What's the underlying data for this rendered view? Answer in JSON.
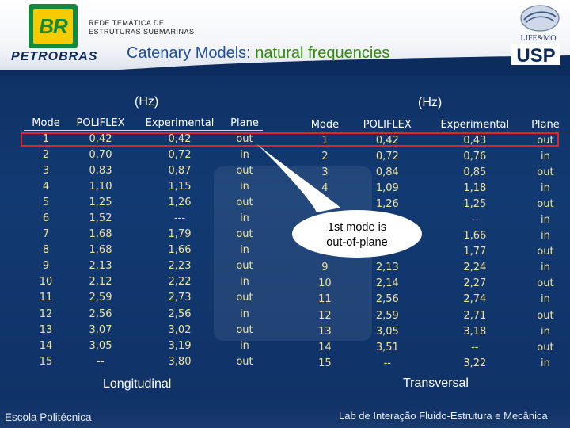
{
  "header": {
    "org_line1": "REDE TEMÁTICA DE",
    "org_line2": "ESTRUTURAS SUBMARINAS",
    "title_prefix": "Catenary Models: ",
    "title_highlight": "natural frequencies",
    "br_logo_text": "BR",
    "petrobras_text": "PETROBRAS",
    "lifemo_text": "LIFE&MO",
    "usp_text": "USP",
    "colors": {
      "title": "#1f4f9a",
      "highlight": "#2e8a0a"
    }
  },
  "units_left": "(Hz)",
  "units_right": "(Hz)",
  "longitudinal": {
    "headers": [
      "Mode",
      "POLIFLEX",
      "Experimental",
      "Plane"
    ],
    "rows": [
      [
        "1",
        "0,42",
        "0,42",
        "out"
      ],
      [
        "2",
        "0,70",
        "0,72",
        "in"
      ],
      [
        "3",
        "0,83",
        "0,87",
        "out"
      ],
      [
        "4",
        "1,10",
        "1,15",
        "in"
      ],
      [
        "5",
        "1,25",
        "1,26",
        "out"
      ],
      [
        "6",
        "1,52",
        "---",
        "in"
      ],
      [
        "7",
        "1,68",
        "1,79",
        "out"
      ],
      [
        "8",
        "1,68",
        "1,66",
        "in"
      ],
      [
        "9",
        "2,13",
        "2,23",
        "out"
      ],
      [
        "10",
        "2,12",
        "2,22",
        "in"
      ],
      [
        "11",
        "2,59",
        "2,73",
        "out"
      ],
      [
        "12",
        "2,56",
        "2,56",
        "in"
      ],
      [
        "13",
        "3,07",
        "3,02",
        "out"
      ],
      [
        "14",
        "3,05",
        "3,19",
        "in"
      ],
      [
        "15",
        "--",
        "3,80",
        "out"
      ]
    ],
    "caption": "Longitudinal"
  },
  "transversal": {
    "headers": [
      "Mode",
      "POLIFLEX",
      "Experimental",
      "Plane"
    ],
    "rows": [
      [
        "1",
        "0,42",
        "0,43",
        "out"
      ],
      [
        "2",
        "0,72",
        "0,76",
        "in"
      ],
      [
        "3",
        "0,84",
        "0,85",
        "out"
      ],
      [
        "4",
        "1,09",
        "1,18",
        "in"
      ],
      [
        "",
        "1,26",
        "1,25",
        "out"
      ],
      [
        "",
        "",
        "--",
        "in"
      ],
      [
        "",
        "",
        "1,66",
        "in"
      ],
      [
        "",
        "",
        "1,77",
        "out"
      ],
      [
        "9",
        "2,13",
        "2,24",
        "in"
      ],
      [
        "10",
        "2,14",
        "2,27",
        "out"
      ],
      [
        "11",
        "2,56",
        "2,74",
        "in"
      ],
      [
        "12",
        "2,59",
        "2,71",
        "out"
      ],
      [
        "13",
        "3,05",
        "3,18",
        "in"
      ],
      [
        "14",
        "3,51",
        "--",
        "out"
      ],
      [
        "15",
        "--",
        "3,22",
        "in"
      ]
    ],
    "caption": "Transversal"
  },
  "callout": {
    "line1": "1st  mode is",
    "line2": "out-of-plane"
  },
  "highlight_color": "#e0242b",
  "footer": {
    "left": "Escola Politécnica",
    "right": "Lab de Interação Fluido-Estrutura e Mecânica"
  }
}
